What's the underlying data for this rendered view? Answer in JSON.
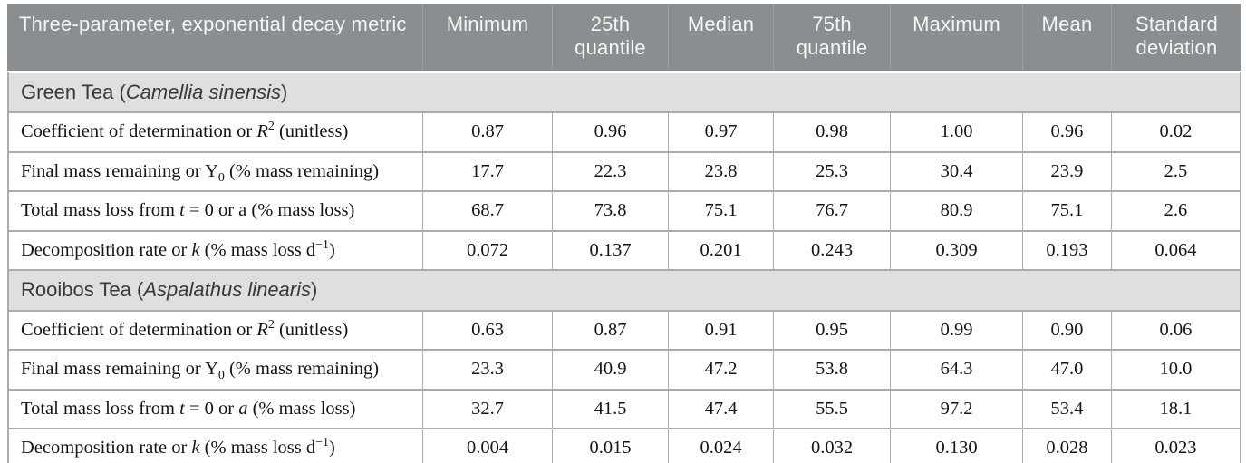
{
  "colors": {
    "header_background": "#8a8e90",
    "header_text": "#f4f6f6",
    "section_band_background": "#dedfde",
    "section_band_text": "#363a3b",
    "grid_border": "#a9acac",
    "data_text": "#141414",
    "page_background": "#ffffff"
  },
  "table": {
    "header": {
      "metric_label": "Three-parameter, exponential decay metric",
      "columns": [
        "Minimum",
        "25th quantile",
        "Median",
        "75th quantile",
        "Maximum",
        "Mean",
        "Standard deviation"
      ]
    },
    "sections": [
      {
        "id": "green-tea",
        "title_segments": [
          {
            "t": "Green Tea ("
          },
          {
            "t": "Camellia sinensis",
            "s": "italic"
          },
          {
            "t": ")"
          }
        ],
        "rows": [
          {
            "label_segments": [
              {
                "t": "Coefficient of determination or "
              },
              {
                "t": "R",
                "s": "italic"
              },
              {
                "t": "2",
                "s": "sup"
              },
              {
                "t": " (unitless)"
              }
            ],
            "values": [
              "0.87",
              "0.96",
              "0.97",
              "0.98",
              "1.00",
              "0.96",
              "0.02"
            ]
          },
          {
            "label_segments": [
              {
                "t": "Final mass remaining or Y"
              },
              {
                "t": "0",
                "s": "sub"
              },
              {
                "t": " (% mass remaining)"
              }
            ],
            "values": [
              "17.7",
              "22.3",
              "23.8",
              "25.3",
              "30.4",
              "23.9",
              "2.5"
            ]
          },
          {
            "label_segments": [
              {
                "t": "Total mass loss from "
              },
              {
                "t": "t",
                "s": "italic"
              },
              {
                "t": " = 0 or a (% mass loss)"
              }
            ],
            "values": [
              "68.7",
              "73.8",
              "75.1",
              "76.7",
              "80.9",
              "75.1",
              "2.6"
            ]
          },
          {
            "label_segments": [
              {
                "t": "Decomposition rate or "
              },
              {
                "t": "k",
                "s": "italic"
              },
              {
                "t": " (% mass loss d"
              },
              {
                "t": "−1",
                "s": "sup"
              },
              {
                "t": ")"
              }
            ],
            "values": [
              "0.072",
              "0.137",
              "0.201",
              "0.243",
              "0.309",
              "0.193",
              "0.064"
            ]
          }
        ]
      },
      {
        "id": "rooibos-tea",
        "title_segments": [
          {
            "t": "Rooibos Tea ("
          },
          {
            "t": "Aspalathus linearis",
            "s": "italic"
          },
          {
            "t": ")"
          }
        ],
        "rows": [
          {
            "label_segments": [
              {
                "t": "Coefficient of determination or "
              },
              {
                "t": "R",
                "s": "italic"
              },
              {
                "t": "2",
                "s": "sup"
              },
              {
                "t": " (unitless)"
              }
            ],
            "values": [
              "0.63",
              "0.87",
              "0.91",
              "0.95",
              "0.99",
              "0.90",
              "0.06"
            ]
          },
          {
            "label_segments": [
              {
                "t": "Final mass remaining or Y"
              },
              {
                "t": "0",
                "s": "sub"
              },
              {
                "t": " (% mass remaining)"
              }
            ],
            "values": [
              "23.3",
              "40.9",
              "47.2",
              "53.8",
              "64.3",
              "47.0",
              "10.0"
            ]
          },
          {
            "label_segments": [
              {
                "t": "Total mass loss from "
              },
              {
                "t": "t",
                "s": "italic"
              },
              {
                "t": " = 0 or "
              },
              {
                "t": "a",
                "s": "italic"
              },
              {
                "t": " (% mass loss)"
              }
            ],
            "values": [
              "32.7",
              "41.5",
              "47.4",
              "55.5",
              "97.2",
              "53.4",
              "18.1"
            ]
          },
          {
            "label_segments": [
              {
                "t": "Decomposition rate or "
              },
              {
                "t": "k",
                "s": "italic"
              },
              {
                "t": " (% mass loss d"
              },
              {
                "t": "−1",
                "s": "sup"
              },
              {
                "t": ")"
              }
            ],
            "values": [
              "0.004",
              "0.015",
              "0.024",
              "0.032",
              "0.130",
              "0.028",
              "0.023"
            ]
          }
        ]
      }
    ]
  }
}
